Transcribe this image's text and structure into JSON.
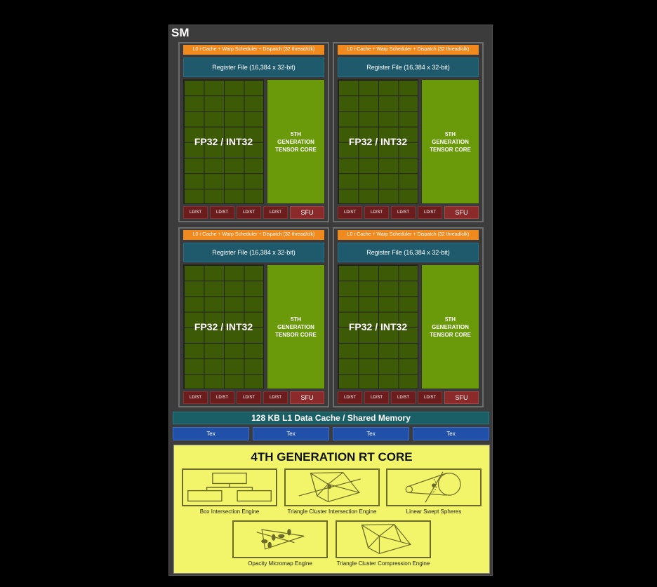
{
  "sm": {
    "title": "SM",
    "partition": {
      "dispatch": "L0 i-Cache + Warp Scheduler + Dispatch (32 thread/clk)",
      "register_file": "Register File (16,384 x 32-bit)",
      "fp32": "FP32 / INT32",
      "tensor_core": "5TH GENERATION TENSOR CORE",
      "ldst": "LD/ST",
      "sfu": "SFU"
    },
    "l1_cache": "128 KB L1 Data Cache / Shared Memory",
    "tex": [
      "Tex",
      "Tex",
      "Tex",
      "Tex"
    ],
    "rt_core": {
      "title": "4TH GENERATION RT CORE",
      "engines": [
        {
          "label": "Box Intersection Engine",
          "icon": "box-hierarchy-icon"
        },
        {
          "label": "Triangle Cluster Intersection Engine",
          "icon": "triangle-cluster-ray-icon"
        },
        {
          "label": "Linear Swept Spheres",
          "icon": "swept-spheres-icon"
        },
        {
          "label": "Opacity Micromap Engine",
          "icon": "leaf-micromap-icon"
        },
        {
          "label": "Triangle Cluster Compression Engine",
          "icon": "triangle-cluster-icon"
        }
      ]
    }
  },
  "colors": {
    "dispatch": "#f0891e",
    "register_file": "#1e5a6c",
    "fp32": "#3d5a06",
    "tensor_core": "#6a9a0a",
    "ldst": "#6b1c1c",
    "tex": "#2150a8",
    "rt_core": "#f2f56a"
  }
}
